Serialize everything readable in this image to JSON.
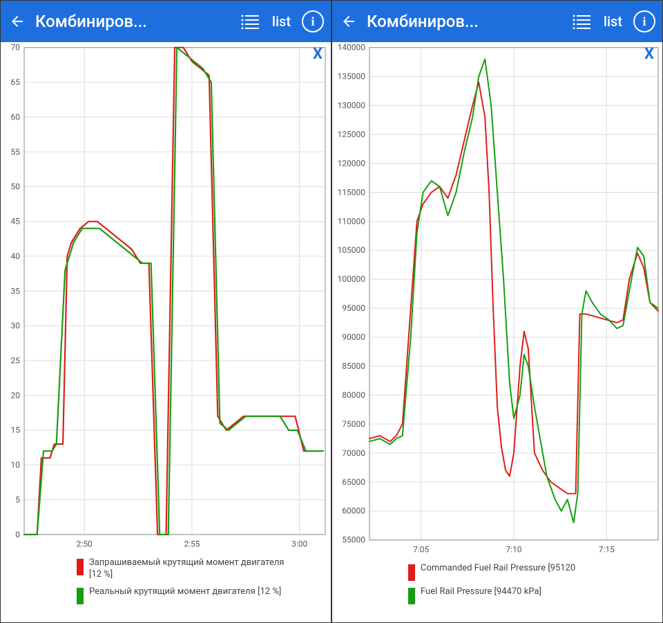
{
  "toolbar": {
    "bg_color": "#1e6fde",
    "title": "Комбиниров...",
    "list_label": "list"
  },
  "close_x": {
    "text": "X",
    "color": "#1e6fde"
  },
  "left": {
    "y": {
      "min": 0,
      "max": 70,
      "step": 5
    },
    "x": {
      "min": 0,
      "max": 14,
      "ticks": [
        {
          "v": 2.8,
          "label": "2:50"
        },
        {
          "v": 7.8,
          "label": "2:55"
        },
        {
          "v": 12.8,
          "label": "3:00"
        }
      ]
    },
    "grid_color": "#dcdcdc",
    "axis_color": "#888888",
    "series": [
      {
        "name": "Запрашиваемый крутящий момент двигателя  [12 %]",
        "color": "#e11b1b",
        "width": 2.2,
        "points": [
          [
            0,
            0
          ],
          [
            0.6,
            0
          ],
          [
            0.8,
            11
          ],
          [
            1.2,
            11
          ],
          [
            1.4,
            13
          ],
          [
            1.8,
            13
          ],
          [
            2.0,
            40
          ],
          [
            2.2,
            42
          ],
          [
            2.6,
            44
          ],
          [
            3.0,
            45
          ],
          [
            3.4,
            45
          ],
          [
            3.8,
            44
          ],
          [
            4.2,
            43
          ],
          [
            4.6,
            42
          ],
          [
            5.0,
            41
          ],
          [
            5.4,
            39
          ],
          [
            5.8,
            39
          ],
          [
            6.2,
            0
          ],
          [
            6.6,
            0
          ],
          [
            7.0,
            70
          ],
          [
            7.4,
            70
          ],
          [
            7.8,
            68
          ],
          [
            8.2,
            67
          ],
          [
            8.6,
            66
          ],
          [
            9.0,
            17
          ],
          [
            9.4,
            15
          ],
          [
            9.8,
            16
          ],
          [
            10.2,
            17
          ],
          [
            10.6,
            17
          ],
          [
            11.0,
            17
          ],
          [
            11.4,
            17
          ],
          [
            11.8,
            17
          ],
          [
            12.2,
            17
          ],
          [
            12.6,
            17
          ],
          [
            13.0,
            12
          ],
          [
            13.4,
            12
          ],
          [
            13.8,
            12
          ]
        ]
      },
      {
        "name": "Реальный крутящий момент двигателя  [12 %]",
        "color": "#159e0f",
        "width": 2.2,
        "points": [
          [
            0,
            0
          ],
          [
            0.6,
            0
          ],
          [
            0.9,
            12
          ],
          [
            1.3,
            12
          ],
          [
            1.5,
            13
          ],
          [
            1.9,
            38
          ],
          [
            2.3,
            42
          ],
          [
            2.7,
            44
          ],
          [
            3.1,
            44
          ],
          [
            3.5,
            44
          ],
          [
            3.9,
            43
          ],
          [
            4.3,
            42
          ],
          [
            4.7,
            41
          ],
          [
            5.1,
            40
          ],
          [
            5.5,
            39
          ],
          [
            5.9,
            39
          ],
          [
            6.3,
            0
          ],
          [
            6.7,
            0
          ],
          [
            7.1,
            70
          ],
          [
            7.5,
            69
          ],
          [
            7.9,
            68
          ],
          [
            8.3,
            67
          ],
          [
            8.7,
            65
          ],
          [
            9.1,
            16
          ],
          [
            9.5,
            15
          ],
          [
            9.9,
            16
          ],
          [
            10.3,
            17
          ],
          [
            10.7,
            17
          ],
          [
            11.1,
            17
          ],
          [
            11.5,
            17
          ],
          [
            11.9,
            17
          ],
          [
            12.3,
            15
          ],
          [
            12.7,
            15
          ],
          [
            13.1,
            12
          ],
          [
            13.5,
            12
          ],
          [
            13.9,
            12
          ]
        ]
      }
    ]
  },
  "right": {
    "y": {
      "min": 55000,
      "max": 140000,
      "step": 5000
    },
    "x": {
      "min": 0,
      "max": 14,
      "ticks": [
        {
          "v": 2.5,
          "label": "7:05"
        },
        {
          "v": 7.0,
          "label": "7:10"
        },
        {
          "v": 11.5,
          "label": "7:15"
        }
      ]
    },
    "grid_color": "#dcdcdc",
    "axis_color": "#888888",
    "series": [
      {
        "name": "Commanded Fuel Rail Pressure  [95120",
        "color": "#e11b1b",
        "width": 2,
        "points": [
          [
            0,
            72500
          ],
          [
            0.5,
            73000
          ],
          [
            1.0,
            72000
          ],
          [
            1.3,
            73000
          ],
          [
            1.6,
            75000
          ],
          [
            2.0,
            95000
          ],
          [
            2.3,
            110000
          ],
          [
            2.6,
            113000
          ],
          [
            3.0,
            115000
          ],
          [
            3.4,
            116000
          ],
          [
            3.8,
            114000
          ],
          [
            4.2,
            118000
          ],
          [
            4.6,
            124000
          ],
          [
            5.0,
            130000
          ],
          [
            5.3,
            134000
          ],
          [
            5.6,
            128000
          ],
          [
            5.8,
            115000
          ],
          [
            6.0,
            95000
          ],
          [
            6.2,
            78000
          ],
          [
            6.4,
            71000
          ],
          [
            6.6,
            67000
          ],
          [
            6.8,
            66000
          ],
          [
            7.0,
            70000
          ],
          [
            7.3,
            85000
          ],
          [
            7.5,
            91000
          ],
          [
            7.7,
            88000
          ],
          [
            8.0,
            70000
          ],
          [
            8.4,
            67000
          ],
          [
            8.8,
            65000
          ],
          [
            9.2,
            64000
          ],
          [
            9.6,
            63000
          ],
          [
            10.0,
            63000
          ],
          [
            10.2,
            94000
          ],
          [
            10.5,
            94000
          ],
          [
            11.0,
            93500
          ],
          [
            11.5,
            93000
          ],
          [
            12.0,
            92500
          ],
          [
            12.3,
            93000
          ],
          [
            12.6,
            100000
          ],
          [
            13.0,
            104500
          ],
          [
            13.3,
            102000
          ],
          [
            13.6,
            96000
          ],
          [
            14.0,
            94500
          ]
        ]
      },
      {
        "name": "Fuel Rail Pressure [94470 kPa]",
        "color": "#159e0f",
        "width": 2,
        "points": [
          [
            0,
            72000
          ],
          [
            0.5,
            72500
          ],
          [
            1.0,
            71500
          ],
          [
            1.3,
            72500
          ],
          [
            1.6,
            73000
          ],
          [
            2.0,
            90000
          ],
          [
            2.3,
            108000
          ],
          [
            2.6,
            115000
          ],
          [
            3.0,
            117000
          ],
          [
            3.4,
            116000
          ],
          [
            3.8,
            111000
          ],
          [
            4.2,
            115000
          ],
          [
            4.6,
            122000
          ],
          [
            5.0,
            128000
          ],
          [
            5.3,
            135000
          ],
          [
            5.6,
            138000
          ],
          [
            5.9,
            130000
          ],
          [
            6.2,
            115000
          ],
          [
            6.5,
            100000
          ],
          [
            6.8,
            82000
          ],
          [
            7.0,
            76000
          ],
          [
            7.3,
            80000
          ],
          [
            7.5,
            87000
          ],
          [
            7.7,
            85000
          ],
          [
            8.0,
            78000
          ],
          [
            8.3,
            72000
          ],
          [
            8.6,
            66000
          ],
          [
            9.0,
            62000
          ],
          [
            9.3,
            60000
          ],
          [
            9.6,
            62000
          ],
          [
            9.9,
            58000
          ],
          [
            10.1,
            63000
          ],
          [
            10.3,
            94000
          ],
          [
            10.5,
            98000
          ],
          [
            10.8,
            96000
          ],
          [
            11.2,
            94000
          ],
          [
            11.6,
            93000
          ],
          [
            12.0,
            91500
          ],
          [
            12.3,
            92000
          ],
          [
            12.6,
            98000
          ],
          [
            13.0,
            105500
          ],
          [
            13.3,
            104000
          ],
          [
            13.6,
            96000
          ],
          [
            14.0,
            95000
          ]
        ]
      }
    ]
  }
}
